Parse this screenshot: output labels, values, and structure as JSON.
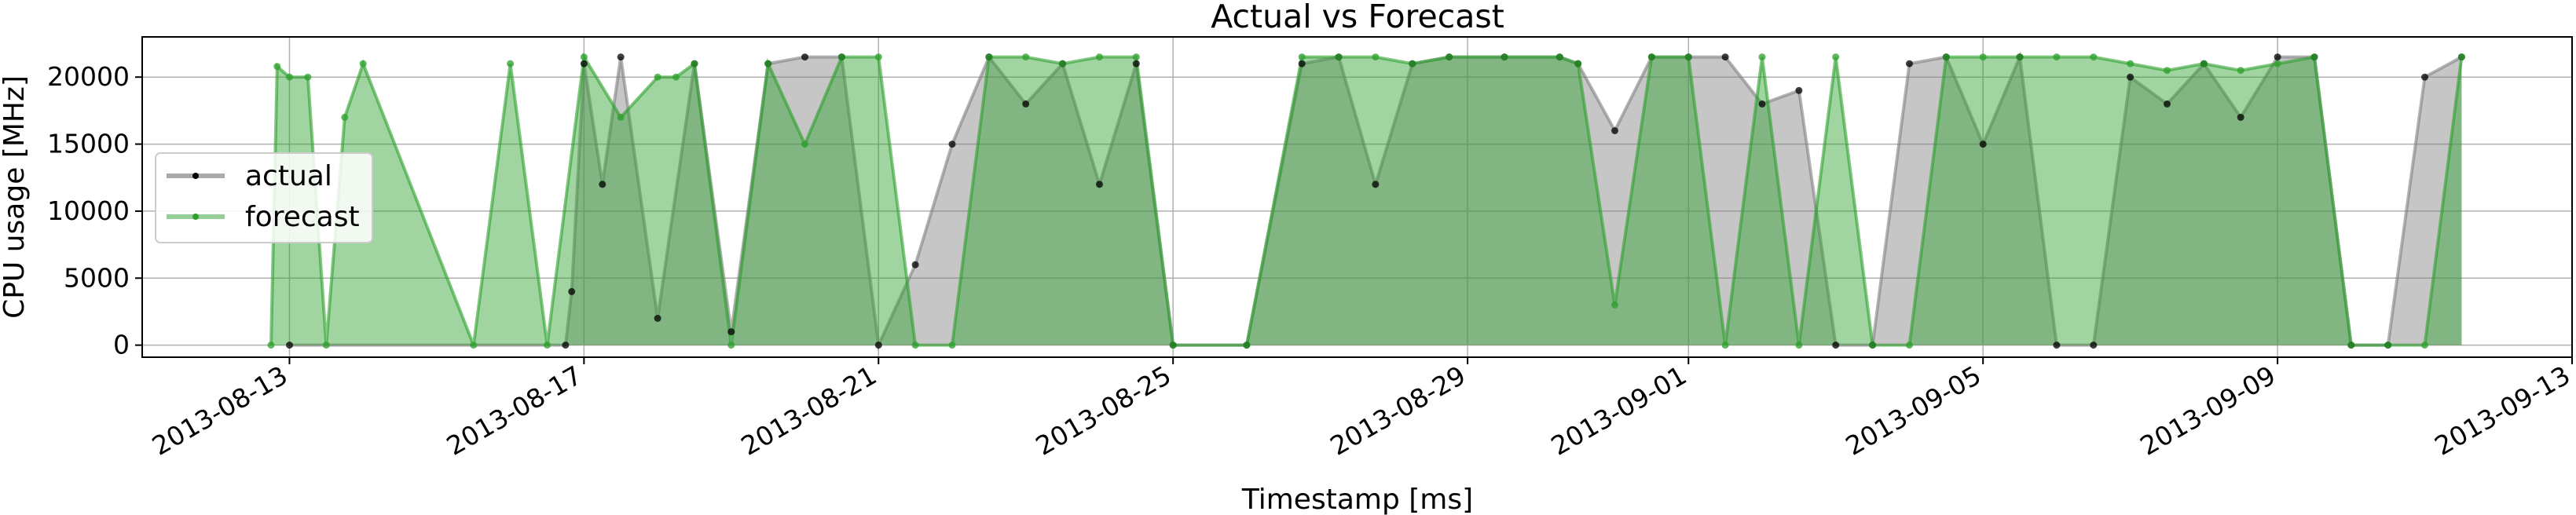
{
  "chart_data": {
    "type": "line",
    "title": "Actual vs Forecast",
    "xlabel": "Timestamp [ms]",
    "ylabel": "CPU usage [MHz]",
    "xlim": [
      "2013-08-11",
      "2013-09-13"
    ],
    "ylim": [
      -900,
      23000
    ],
    "x_tick_labels": [
      "2013-08-13",
      "2013-08-17",
      "2013-08-21",
      "2013-08-25",
      "2013-08-29",
      "2013-09-01",
      "2013-09-05",
      "2013-09-09",
      "2013-09-13"
    ],
    "y_ticks": [
      0,
      5000,
      10000,
      15000,
      20000
    ],
    "y_tick_labels": [
      "0",
      "5000",
      "10000",
      "15000",
      "20000"
    ],
    "grid": true,
    "legend_position": "center-left",
    "series": [
      {
        "name": "actual",
        "color": "#555555",
        "x": [
          "2013-08-13T00:00",
          "2013-08-16T18:00",
          "2013-08-16T20:00",
          "2013-08-17T00:00",
          "2013-08-17T06:00",
          "2013-08-17T12:00",
          "2013-08-18T00:00",
          "2013-08-18T12:00",
          "2013-08-19T00:00",
          "2013-08-19T12:00",
          "2013-08-20T00:00",
          "2013-08-20T12:00",
          "2013-08-21T00:00",
          "2013-08-21T12:00",
          "2013-08-22T00:00",
          "2013-08-22T12:00",
          "2013-08-23T00:00",
          "2013-08-23T12:00",
          "2013-08-24T00:00",
          "2013-08-24T12:00",
          "2013-08-25T00:00",
          "2013-08-26T00:00",
          "2013-08-26T18:00",
          "2013-08-27T06:00",
          "2013-08-27T18:00",
          "2013-08-28T06:00",
          "2013-08-28T18:00",
          "2013-08-29T12:00",
          "2013-08-30T06:00",
          "2013-08-30T12:00",
          "2013-08-31T00:00",
          "2013-08-31T12:00",
          "2013-09-01T00:00",
          "2013-09-01T12:00",
          "2013-09-02T00:00",
          "2013-09-02T12:00",
          "2013-09-03T00:00",
          "2013-09-03T12:00",
          "2013-09-04T00:00",
          "2013-09-04T12:00",
          "2013-09-05T00:00",
          "2013-09-05T12:00",
          "2013-09-06T00:00",
          "2013-09-06T12:00",
          "2013-09-07T00:00",
          "2013-09-07T12:00",
          "2013-09-08T00:00",
          "2013-09-08T12:00",
          "2013-09-09T00:00",
          "2013-09-09T12:00",
          "2013-09-10T00:00",
          "2013-09-10T12:00",
          "2013-09-11T00:00",
          "2013-09-11T12:00"
        ],
        "y": [
          0,
          0,
          4000,
          21000,
          12000,
          21500,
          2000,
          21000,
          1000,
          21000,
          21500,
          21500,
          0,
          6000,
          15000,
          21500,
          18000,
          21000,
          12000,
          21000,
          0,
          0,
          21000,
          21500,
          12000,
          21000,
          21500,
          21500,
          21500,
          21000,
          16000,
          21500,
          21500,
          21500,
          18000,
          19000,
          0,
          0,
          21000,
          21500,
          15000,
          21500,
          0,
          0,
          20000,
          18000,
          21000,
          17000,
          21500,
          21500,
          0,
          0,
          20000,
          21500
        ]
      },
      {
        "name": "forecast",
        "color": "#2ca02c",
        "x": [
          "2013-08-12T18:00",
          "2013-08-12T20:00",
          "2013-08-13T00:00",
          "2013-08-13T06:00",
          "2013-08-13T12:00",
          "2013-08-13T18:00",
          "2013-08-14T00:00",
          "2013-08-15T12:00",
          "2013-08-16T00:00",
          "2013-08-16T12:00",
          "2013-08-17T00:00",
          "2013-08-17T12:00",
          "2013-08-18T00:00",
          "2013-08-18T06:00",
          "2013-08-18T12:00",
          "2013-08-19T00:00",
          "2013-08-19T12:00",
          "2013-08-20T00:00",
          "2013-08-20T12:00",
          "2013-08-21T00:00",
          "2013-08-21T12:00",
          "2013-08-22T00:00",
          "2013-08-22T12:00",
          "2013-08-23T00:00",
          "2013-08-23T12:00",
          "2013-08-24T00:00",
          "2013-08-24T12:00",
          "2013-08-25T00:00",
          "2013-08-26T00:00",
          "2013-08-26T18:00",
          "2013-08-27T06:00",
          "2013-08-27T18:00",
          "2013-08-28T06:00",
          "2013-08-28T18:00",
          "2013-08-29T12:00",
          "2013-08-30T06:00",
          "2013-08-30T12:00",
          "2013-08-31T00:00",
          "2013-08-31T12:00",
          "2013-09-01T00:00",
          "2013-09-01T12:00",
          "2013-09-02T00:00",
          "2013-09-02T12:00",
          "2013-09-03T00:00",
          "2013-09-03T12:00",
          "2013-09-04T00:00",
          "2013-09-04T12:00",
          "2013-09-05T00:00",
          "2013-09-05T12:00",
          "2013-09-06T00:00",
          "2013-09-06T12:00",
          "2013-09-07T00:00",
          "2013-09-07T12:00",
          "2013-09-08T00:00",
          "2013-09-08T12:00",
          "2013-09-09T00:00",
          "2013-09-09T12:00",
          "2013-09-10T00:00",
          "2013-09-10T12:00",
          "2013-09-11T00:00",
          "2013-09-11T12:00"
        ],
        "y": [
          0,
          20800,
          20000,
          20000,
          0,
          17000,
          21000,
          0,
          21000,
          0,
          21500,
          17000,
          20000,
          20000,
          21000,
          0,
          21000,
          15000,
          21500,
          21500,
          0,
          0,
          21500,
          21500,
          21000,
          21500,
          21500,
          0,
          0,
          21500,
          21500,
          21500,
          21000,
          21500,
          21500,
          21500,
          21000,
          3000,
          21500,
          21500,
          0,
          21500,
          0,
          21500,
          0,
          0,
          21500,
          21500,
          21500,
          21500,
          21500,
          21000,
          20500,
          21000,
          20500,
          21000,
          21500,
          0,
          0,
          0,
          21500
        ]
      }
    ]
  }
}
